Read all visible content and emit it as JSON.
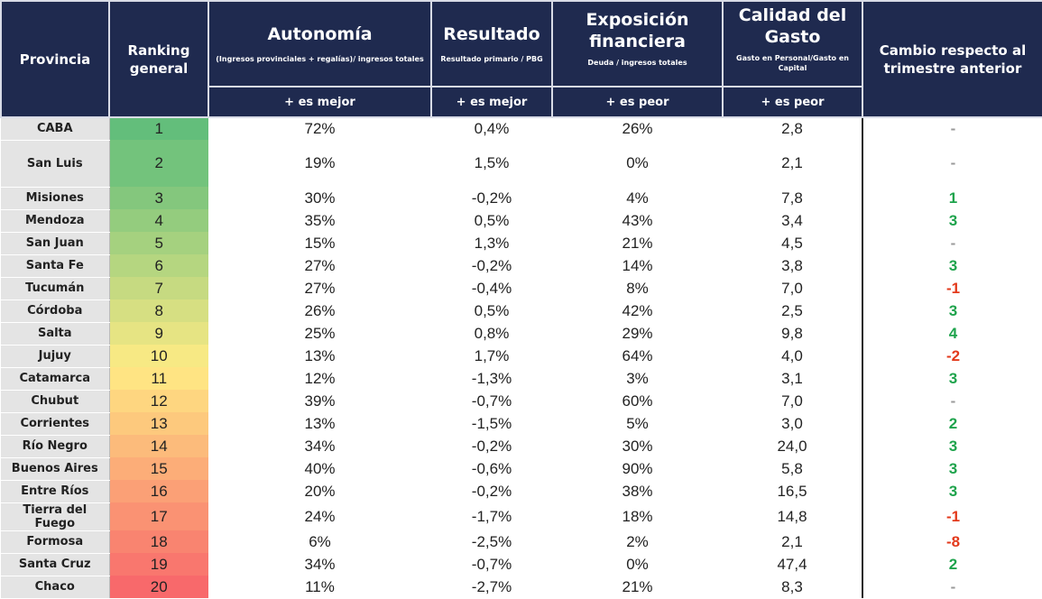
{
  "chart_data": {
    "type": "table",
    "headers": {
      "provincia": "Provincia",
      "ranking": "Ranking general",
      "autonomia": {
        "title": "Autonomía",
        "sub": "(Ingresos provinciales + regalías)/ ingresos totales",
        "dir": "+ es mejor"
      },
      "resultado": {
        "title": "Resultado",
        "sub": "Resultado primario / PBG",
        "dir": "+ es mejor"
      },
      "exposicion": {
        "title": "Exposición financiera",
        "sub": "Deuda / ingresos totales",
        "dir": "+ es peor"
      },
      "calidad": {
        "title": "Calidad del Gasto",
        "sub": "Gasto en Personal/Gasto en Capital",
        "dir": "+ es peor"
      },
      "cambio": "Cambio respecto al trimestre anterior"
    },
    "rows": [
      {
        "provincia": "CABA",
        "ranking": 1,
        "autonomia": "72%",
        "resultado": "0,4%",
        "exposicion": "26%",
        "calidad": "2,8",
        "cambio": "-"
      },
      {
        "provincia": "San Luis",
        "ranking": 2,
        "autonomia": "19%",
        "resultado": "1,5%",
        "exposicion": "0%",
        "calidad": "2,1",
        "cambio": "-"
      },
      {
        "provincia": "Misiones",
        "ranking": 3,
        "autonomia": "30%",
        "resultado": "-0,2%",
        "exposicion": "4%",
        "calidad": "7,8",
        "cambio": "1"
      },
      {
        "provincia": "Mendoza",
        "ranking": 4,
        "autonomia": "35%",
        "resultado": "0,5%",
        "exposicion": "43%",
        "calidad": "3,4",
        "cambio": "3"
      },
      {
        "provincia": "San Juan",
        "ranking": 5,
        "autonomia": "15%",
        "resultado": "1,3%",
        "exposicion": "21%",
        "calidad": "4,5",
        "cambio": "-"
      },
      {
        "provincia": "Santa Fe",
        "ranking": 6,
        "autonomia": "27%",
        "resultado": "-0,2%",
        "exposicion": "14%",
        "calidad": "3,8",
        "cambio": "3"
      },
      {
        "provincia": "Tucumán",
        "ranking": 7,
        "autonomia": "27%",
        "resultado": "-0,4%",
        "exposicion": "8%",
        "calidad": "7,0",
        "cambio": "-1"
      },
      {
        "provincia": "Córdoba",
        "ranking": 8,
        "autonomia": "26%",
        "resultado": "0,5%",
        "exposicion": "42%",
        "calidad": "2,5",
        "cambio": "3"
      },
      {
        "provincia": "Salta",
        "ranking": 9,
        "autonomia": "25%",
        "resultado": "0,8%",
        "exposicion": "29%",
        "calidad": "9,8",
        "cambio": "4"
      },
      {
        "provincia": "Jujuy",
        "ranking": 10,
        "autonomia": "13%",
        "resultado": "1,7%",
        "exposicion": "64%",
        "calidad": "4,0",
        "cambio": "-2"
      },
      {
        "provincia": "Catamarca",
        "ranking": 11,
        "autonomia": "12%",
        "resultado": "-1,3%",
        "exposicion": "3%",
        "calidad": "3,1",
        "cambio": "3"
      },
      {
        "provincia": "Chubut",
        "ranking": 12,
        "autonomia": "39%",
        "resultado": "-0,7%",
        "exposicion": "60%",
        "calidad": "7,0",
        "cambio": "-"
      },
      {
        "provincia": "Corrientes",
        "ranking": 13,
        "autonomia": "13%",
        "resultado": "-1,5%",
        "exposicion": "5%",
        "calidad": "3,0",
        "cambio": "2"
      },
      {
        "provincia": "Río Negro",
        "ranking": 14,
        "autonomia": "34%",
        "resultado": "-0,2%",
        "exposicion": "30%",
        "calidad": "24,0",
        "cambio": "3"
      },
      {
        "provincia": "Buenos Aires",
        "ranking": 15,
        "autonomia": "40%",
        "resultado": "-0,6%",
        "exposicion": "90%",
        "calidad": "5,8",
        "cambio": "3"
      },
      {
        "provincia": "Entre Ríos",
        "ranking": 16,
        "autonomia": "20%",
        "resultado": "-0,2%",
        "exposicion": "38%",
        "calidad": "16,5",
        "cambio": "3"
      },
      {
        "provincia": "Tierra del Fuego",
        "ranking": 17,
        "autonomia": "24%",
        "resultado": "-1,7%",
        "exposicion": "18%",
        "calidad": "14,8",
        "cambio": "-1"
      },
      {
        "provincia": "Formosa",
        "ranking": 18,
        "autonomia": "6%",
        "resultado": "-2,5%",
        "exposicion": "2%",
        "calidad": "2,1",
        "cambio": "-8"
      },
      {
        "provincia": "Santa Cruz",
        "ranking": 19,
        "autonomia": "34%",
        "resultado": "-0,7%",
        "exposicion": "0%",
        "calidad": "47,4",
        "cambio": "2"
      },
      {
        "provincia": "Chaco",
        "ranking": 20,
        "autonomia": "11%",
        "resultado": "-2,7%",
        "exposicion": "21%",
        "calidad": "8,3",
        "cambio": "-"
      }
    ],
    "colors": {
      "header": "#1f2a4f",
      "positive": "#1ea34c",
      "negative": "#e33a1c",
      "rank_best": "#63be7b",
      "rank_mid": "#ffeb84",
      "rank_worst": "#f8696b"
    }
  }
}
